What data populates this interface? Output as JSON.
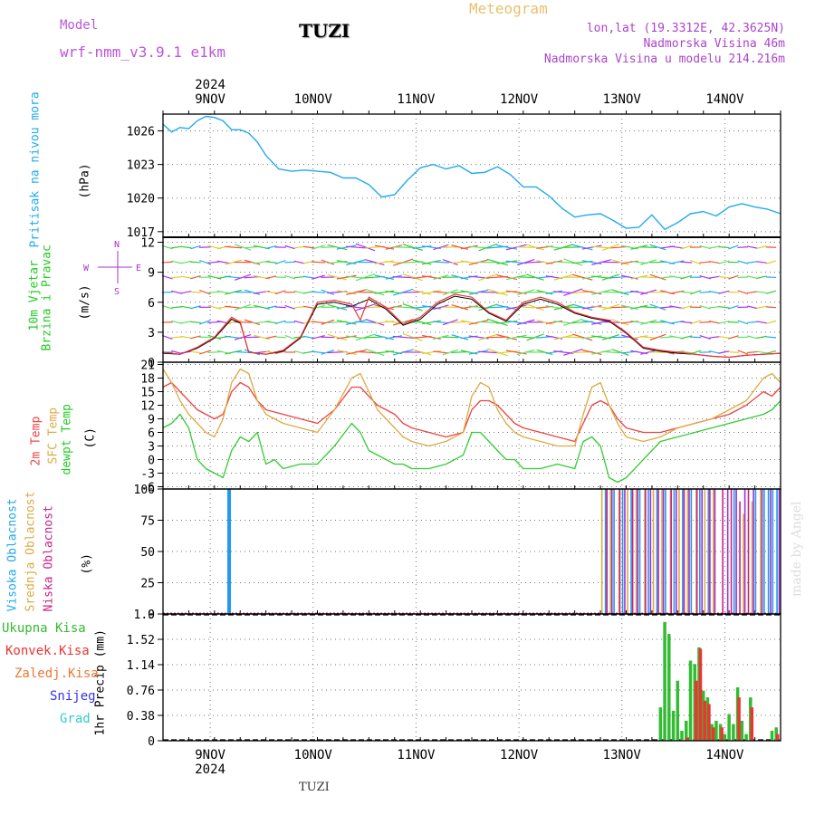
{
  "header": {
    "model_label": "Model",
    "model_value": "wrf-nmm_v3.9.1 e1km",
    "station": "TUZI",
    "title": "Meteogram",
    "lonlat": "lon,lat (19.3312E, 42.3625N)",
    "elevation": "Nadmorska Visina 46m",
    "model_elevation": "Nadmorska Visina u modelu 214.216m",
    "footer_station": "TUZI",
    "watermark": "made by Angel",
    "colors": {
      "model": "#bb55dd",
      "title": "#e8c070",
      "info": "#aa44cc",
      "station": "#000000"
    }
  },
  "time_axis": {
    "year": "2024",
    "days": [
      "9NOV",
      "10NOV",
      "11NOV",
      "12NOV",
      "13NOV",
      "14NOV"
    ],
    "start": "2024-11-08T13:00",
    "end": "2024-11-14T13:00"
  },
  "chart_data": [
    {
      "type": "line",
      "name": "pressure",
      "ylabel": [
        "Pritisak na nivou mora",
        "(hPa)"
      ],
      "ylim": [
        1016.5,
        1027.5
      ],
      "yticks": [
        1017,
        1020,
        1023,
        1026
      ],
      "grid": true,
      "series": [
        {
          "color": "#22aaee",
          "x_hours": [
            0,
            2,
            4,
            6,
            8,
            10,
            12,
            14,
            16,
            18,
            20,
            22,
            24,
            27,
            30,
            33,
            36,
            39,
            42,
            45,
            48,
            51,
            54,
            57,
            60,
            63,
            66,
            69,
            72,
            75,
            78,
            81,
            84,
            87,
            90,
            93,
            96,
            99,
            102,
            105,
            108,
            111,
            114,
            117,
            120,
            123,
            126,
            129,
            132,
            135,
            138,
            141,
            144
          ],
          "values": [
            1026.6,
            1025.9,
            1026.3,
            1026.2,
            1026.9,
            1027.3,
            1027.2,
            1026.9,
            1026.1,
            1026.1,
            1025.8,
            1025.0,
            1023.8,
            1022.6,
            1022.4,
            1022.5,
            1022.4,
            1022.3,
            1021.8,
            1021.8,
            1021.2,
            1020.1,
            1020.3,
            1021.6,
            1022.7,
            1023.0,
            1022.6,
            1022.9,
            1022.2,
            1022.3,
            1022.8,
            1022.1,
            1021.0,
            1021.0,
            1020.2,
            1019.1,
            1018.3,
            1018.5,
            1018.6,
            1018.0,
            1017.3,
            1017.4,
            1018.5,
            1017.2,
            1017.8,
            1018.6,
            1018.8,
            1018.4,
            1019.2,
            1019.5,
            1019.2,
            1019.0,
            1018.6
          ]
        }
      ]
    },
    {
      "type": "line",
      "name": "wind",
      "ylabel": [
        "10m Vjetar",
        "Brzina i Pravac",
        "(m/s)"
      ],
      "compass": {
        "n": "N",
        "s": "S",
        "w": "W",
        "e": "E"
      },
      "ylim": [
        0,
        12.5
      ],
      "yticks": [
        0,
        3,
        6,
        9,
        12
      ],
      "grid": true,
      "series": [
        {
          "name": "speed",
          "color": "#ee3333",
          "x_hours": [
            0,
            4,
            8,
            12,
            16,
            18,
            20,
            24,
            28,
            32,
            36,
            40,
            44,
            46,
            48,
            52,
            56,
            60,
            64,
            68,
            72,
            76,
            80,
            84,
            88,
            92,
            96,
            100,
            104,
            108,
            112,
            116,
            120,
            124,
            128,
            132,
            136,
            140,
            144
          ],
          "values": [
            1.0,
            0.8,
            1.5,
            2.5,
            4.5,
            4.0,
            1.0,
            0.8,
            1.2,
            2.5,
            6.0,
            6.2,
            5.8,
            4.2,
            6.5,
            5.5,
            3.8,
            4.5,
            6.0,
            6.8,
            6.5,
            5.0,
            4.2,
            6.0,
            6.5,
            6.0,
            5.0,
            4.5,
            4.2,
            3.0,
            1.5,
            1.2,
            1.0,
            0.8,
            0.6,
            0.5,
            0.7,
            0.8,
            0.9
          ]
        },
        {
          "name": "speed-mean",
          "color": "#000000",
          "x_hours": [
            0,
            4,
            8,
            12,
            16,
            18,
            20,
            24,
            28,
            32,
            36,
            40,
            44,
            48,
            52,
            56,
            60,
            64,
            68,
            72,
            76,
            80,
            84,
            88,
            92,
            96,
            100,
            104,
            108,
            112,
            116,
            120,
            124,
            128,
            132,
            136,
            140,
            144
          ],
          "values": [
            0.9,
            0.8,
            1.4,
            2.4,
            4.3,
            3.9,
            1.0,
            0.8,
            1.1,
            2.4,
            5.8,
            6.0,
            5.6,
            6.3,
            5.3,
            3.7,
            4.3,
            5.8,
            6.6,
            6.3,
            4.9,
            4.1,
            5.8,
            6.3,
            5.8,
            4.9,
            4.4,
            4.1,
            2.9,
            1.4,
            1.1,
            0.9,
            0.8,
            0.6,
            0.5,
            0.7,
            0.8,
            0.9
          ]
        }
      ]
    },
    {
      "type": "line",
      "name": "temperature",
      "ylabel": [
        "2m Temp",
        "SFC Temp",
        "dewpt Temp",
        "(C)"
      ],
      "ylim": [
        -6.5,
        21.5
      ],
      "yticks": [
        -6,
        -3,
        0,
        3,
        6,
        9,
        12,
        15,
        18,
        21
      ],
      "grid": true,
      "series": [
        {
          "name": "2m Temp",
          "color": "#ee4444",
          "x_hours": [
            0,
            2,
            4,
            6,
            8,
            10,
            12,
            14,
            16,
            18,
            20,
            22,
            24,
            28,
            32,
            36,
            40,
            44,
            46,
            48,
            50,
            52,
            54,
            56,
            58,
            62,
            66,
            70,
            72,
            74,
            76,
            78,
            80,
            82,
            84,
            88,
            92,
            96,
            98,
            100,
            102,
            104,
            106,
            108,
            112,
            116,
            120,
            124,
            128,
            132,
            136,
            140,
            142,
            144
          ],
          "values": [
            16,
            17,
            15,
            13,
            11,
            10,
            9,
            10,
            15,
            17,
            16,
            13,
            11,
            10,
            9,
            8,
            11,
            16,
            16,
            14,
            12,
            11,
            10,
            8,
            7,
            6,
            5,
            6,
            11,
            13,
            13,
            12,
            10,
            8,
            7,
            6,
            5,
            4,
            8,
            12,
            13,
            12,
            9,
            7,
            6,
            6,
            7,
            8,
            9,
            10,
            12,
            15,
            14,
            16
          ]
        },
        {
          "name": "SFC Temp",
          "color": "#ddaa44",
          "x_hours": [
            0,
            2,
            4,
            6,
            8,
            10,
            12,
            14,
            16,
            18,
            20,
            22,
            24,
            28,
            32,
            36,
            40,
            44,
            46,
            48,
            50,
            52,
            54,
            56,
            58,
            62,
            66,
            70,
            72,
            74,
            76,
            78,
            80,
            82,
            84,
            88,
            92,
            96,
            98,
            100,
            102,
            104,
            106,
            108,
            112,
            116,
            120,
            124,
            128,
            132,
            136,
            140,
            142,
            144
          ],
          "values": [
            20,
            17,
            13,
            10,
            8,
            6,
            5,
            9,
            17,
            20,
            19,
            13,
            10,
            8,
            7,
            6,
            11,
            18,
            19,
            15,
            11,
            9,
            7,
            5,
            4,
            3,
            4,
            6,
            14,
            17,
            16,
            11,
            8,
            6,
            5,
            4,
            3,
            3,
            10,
            16,
            17,
            12,
            8,
            5,
            4,
            5,
            7,
            8,
            9,
            11,
            13,
            18,
            19,
            17
          ]
        },
        {
          "name": "dewpt Temp",
          "color": "#33cc33",
          "x_hours": [
            0,
            2,
            4,
            6,
            8,
            10,
            12,
            14,
            16,
            18,
            20,
            22,
            24,
            26,
            28,
            32,
            36,
            40,
            44,
            46,
            48,
            50,
            52,
            54,
            56,
            58,
            62,
            66,
            70,
            72,
            74,
            76,
            78,
            80,
            82,
            84,
            88,
            92,
            96,
            98,
            100,
            102,
            104,
            106,
            108,
            112,
            116,
            120,
            124,
            128,
            132,
            136,
            140,
            142,
            144
          ],
          "values": [
            7,
            8,
            10,
            7,
            0,
            -2,
            -3,
            -4,
            2,
            5,
            4,
            6,
            -1,
            0,
            -2,
            -1,
            -1,
            3,
            8,
            6,
            2,
            1,
            0,
            -1,
            -1,
            -2,
            -2,
            -1,
            1,
            6,
            6,
            4,
            2,
            0,
            0,
            -2,
            -2,
            -1,
            -2,
            4,
            5,
            3,
            -4,
            -5,
            -4,
            0,
            4,
            5,
            6,
            7,
            8,
            9,
            10,
            11,
            13
          ]
        }
      ]
    },
    {
      "type": "bar",
      "name": "cloud-cover",
      "ylabel": [
        "Visoka Oblacnost",
        "Srednja Oblacnost",
        "Niska Oblacnost",
        "(%)"
      ],
      "ylim": [
        0,
        100
      ],
      "yticks": [
        0,
        25,
        50,
        75,
        100
      ],
      "grid": true,
      "series": [
        {
          "name": "Visoka Oblacnost",
          "color": "#2299ee",
          "x_hours": [
            15,
            103,
            105,
            107,
            109,
            111,
            113,
            115,
            117,
            119,
            121,
            123,
            125,
            127,
            133,
            138,
            140,
            141,
            142,
            143
          ],
          "values": [
            100,
            100,
            100,
            100,
            100,
            100,
            100,
            100,
            100,
            100,
            100,
            100,
            100,
            100,
            100,
            100,
            100,
            100,
            100,
            100
          ]
        },
        {
          "name": "Srednja Oblacnost",
          "color": "#ddaa44",
          "x_hours": [
            102,
            104,
            106,
            108,
            110,
            112,
            114,
            116,
            118,
            120,
            122,
            124,
            126,
            128,
            135,
            137,
            139
          ],
          "values": [
            100,
            100,
            100,
            100,
            100,
            100,
            100,
            100,
            100,
            100,
            100,
            100,
            100,
            100,
            80,
            90,
            100
          ]
        },
        {
          "name": "Niska Oblacnost",
          "color": "#cc2288",
          "x_hours": [
            103,
            106,
            109,
            112,
            115,
            118,
            121,
            124,
            127,
            130,
            132,
            134,
            136
          ],
          "values": [
            100,
            100,
            100,
            100,
            100,
            100,
            100,
            100,
            100,
            100,
            100,
            90,
            100
          ]
        },
        {
          "name": "purple-layer",
          "color": "#9933cc",
          "x_hours": [
            104,
            107,
            110,
            113,
            116,
            119,
            122,
            125,
            128,
            131,
            133,
            135,
            137,
            139,
            141,
            143
          ],
          "values": [
            100,
            100,
            100,
            100,
            100,
            100,
            100,
            100,
            100,
            100,
            100,
            100,
            100,
            100,
            100,
            100
          ]
        }
      ]
    },
    {
      "type": "bar",
      "name": "precipitation",
      "ylabel": [
        "1hr Precip (mm)"
      ],
      "legend": [
        {
          "label": "Ukupna Kisa",
          "color": "#33bb33"
        },
        {
          "label": "Konvek.Kisa",
          "color": "#ee3333"
        },
        {
          "label": "Zaledj.Kisa",
          "color": "#ee7733"
        },
        {
          "label": "Snijeg",
          "color": "#3333ee"
        },
        {
          "label": "Grad",
          "color": "#33cccc"
        }
      ],
      "ylim": [
        0,
        1.9
      ],
      "yticks": [
        "0",
        "0.38",
        "0.76",
        "1.14",
        "1.52",
        "1.9"
      ],
      "grid": true,
      "series": [
        {
          "name": "Ukupna Kisa",
          "color": "#33bb33",
          "x_hours": [
            116,
            117,
            118,
            119,
            120,
            121,
            122,
            123,
            124,
            125,
            126,
            127,
            128,
            129,
            130,
            131,
            132,
            133,
            134,
            135,
            136,
            137,
            142,
            143
          ],
          "values": [
            0.5,
            1.78,
            1.6,
            0.45,
            0.9,
            0.15,
            0.3,
            1.2,
            1.15,
            1.4,
            0.75,
            0.65,
            0.25,
            0.3,
            0.25,
            0.1,
            0.4,
            0.25,
            0.8,
            0.3,
            0.1,
            0.65,
            0.15,
            0.2
          ]
        },
        {
          "name": "Konvek.Kisa",
          "color": "#ee3333",
          "x_hours": [
            122,
            124,
            125,
            126,
            127,
            128,
            130,
            134,
            137,
            143
          ],
          "values": [
            0.05,
            0.9,
            1.38,
            0.6,
            0.55,
            0.2,
            0.2,
            0.65,
            0.5,
            0.1
          ]
        }
      ]
    }
  ]
}
